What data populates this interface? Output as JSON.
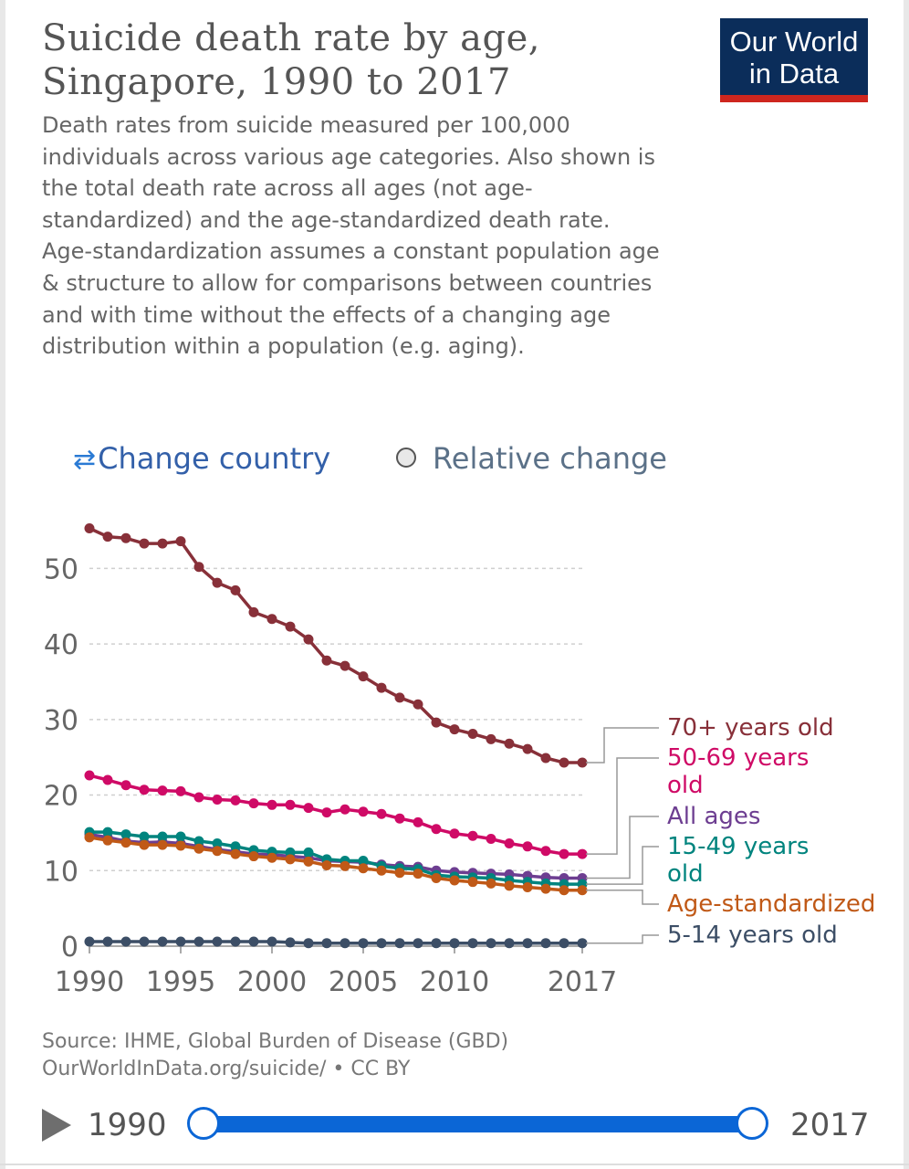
{
  "header": {
    "title": "Suicide death rate by age, Singapore, 1990 to 2017",
    "subtitle": "Death rates from suicide measured per 100,000 individuals across various age categories. Also shown is the total death rate across all ages (not age-standardized) and the age-standardized death rate. Age-standardization assumes a constant population age & structure to allow for comparisons between countries and with time without the effects of a changing age distribution within a population (e.g. aging).",
    "logo_line1": "Our World",
    "logo_line2": "in Data"
  },
  "controls": {
    "change_country": "Change country",
    "change_country_icon": "swap-arrows-icon",
    "relative_change": "Relative change"
  },
  "footer": {
    "source": "Source: IHME, Global Burden of Disease (GBD)",
    "link": "OurWorldInData.org/suicide/ • CC BY"
  },
  "timeline": {
    "start": "1990",
    "end": "2017",
    "play_icon": "play-icon"
  },
  "colors": {
    "brand_navy": "#0b2d5a",
    "brand_red": "#ce261e",
    "slider_blue": "#0b66d6"
  },
  "chart_data": {
    "type": "line",
    "xlim": [
      1990,
      2017
    ],
    "ylim": [
      0,
      55
    ],
    "x_ticks": [
      1990,
      1995,
      2000,
      2005,
      2010,
      2017
    ],
    "y_ticks": [
      0,
      10,
      20,
      30,
      40,
      50
    ],
    "grid": "horizontal dashed",
    "legend": "line-end labels (right)",
    "x": [
      1990,
      1991,
      1992,
      1993,
      1994,
      1995,
      1996,
      1997,
      1998,
      1999,
      2000,
      2001,
      2002,
      2003,
      2004,
      2005,
      2006,
      2007,
      2008,
      2009,
      2010,
      2011,
      2012,
      2013,
      2014,
      2015,
      2016,
      2017
    ],
    "series": [
      {
        "name": "70+ years old",
        "color": "#883039",
        "values": [
          55.3,
          54.2,
          54.0,
          53.3,
          53.3,
          53.6,
          50.2,
          48.1,
          47.1,
          44.2,
          43.3,
          42.3,
          40.6,
          37.8,
          37.1,
          35.7,
          34.2,
          32.9,
          32.0,
          29.6,
          28.7,
          28.1,
          27.4,
          26.8,
          26.1,
          24.9,
          24.3,
          24.3
        ]
      },
      {
        "name": "50-69 years old",
        "color": "#cf0a66",
        "values": [
          22.6,
          22.0,
          21.3,
          20.7,
          20.6,
          20.5,
          19.7,
          19.4,
          19.3,
          18.9,
          18.7,
          18.7,
          18.3,
          17.7,
          18.1,
          17.8,
          17.5,
          16.9,
          16.4,
          15.5,
          14.9,
          14.6,
          14.2,
          13.6,
          13.2,
          12.6,
          12.2,
          12.2
        ]
      },
      {
        "name": "All ages",
        "color": "#6d3e91",
        "values": [
          14.8,
          14.4,
          13.9,
          13.7,
          13.8,
          13.6,
          13.2,
          12.8,
          12.5,
          12.2,
          12.1,
          11.9,
          11.7,
          11.3,
          11.2,
          11.1,
          10.8,
          10.6,
          10.5,
          10.0,
          9.8,
          9.7,
          9.6,
          9.5,
          9.3,
          9.1,
          9.0,
          9.0
        ]
      },
      {
        "name": "15-49 years old",
        "color": "#00847e",
        "values": [
          15.1,
          15.1,
          14.8,
          14.5,
          14.5,
          14.5,
          13.9,
          13.6,
          13.2,
          12.7,
          12.5,
          12.4,
          12.4,
          11.5,
          11.3,
          11.3,
          10.6,
          10.3,
          10.2,
          9.4,
          9.2,
          9.1,
          9.0,
          8.7,
          8.5,
          8.3,
          8.2,
          8.2
        ]
      },
      {
        "name": "Age-standardized",
        "color": "#c05917",
        "values": [
          14.4,
          14.0,
          13.7,
          13.4,
          13.4,
          13.3,
          12.9,
          12.6,
          12.2,
          11.9,
          11.7,
          11.5,
          11.2,
          10.7,
          10.6,
          10.3,
          10.0,
          9.7,
          9.6,
          9.0,
          8.7,
          8.5,
          8.3,
          8.0,
          7.8,
          7.6,
          7.4,
          7.4
        ]
      },
      {
        "name": "5-14 years old",
        "color": "#3c4e66",
        "values": [
          0.6,
          0.6,
          0.6,
          0.6,
          0.6,
          0.6,
          0.6,
          0.6,
          0.6,
          0.6,
          0.6,
          0.5,
          0.4,
          0.4,
          0.4,
          0.4,
          0.4,
          0.4,
          0.4,
          0.4,
          0.4,
          0.4,
          0.4,
          0.4,
          0.4,
          0.4,
          0.4,
          0.4
        ]
      }
    ]
  }
}
